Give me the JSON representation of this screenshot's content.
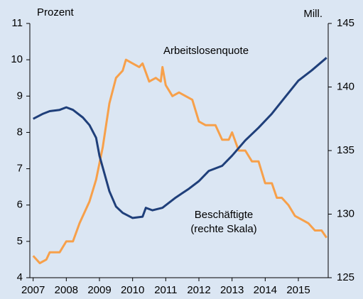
{
  "chart_data": {
    "type": "line",
    "y_label": "Prozent",
    "y2_label": "Mill.",
    "annotations": [
      "Arbeitslosenquote",
      "Beschäftigte",
      "(rechte Skala)"
    ],
    "xlim": [
      2006.9,
      2015.9
    ],
    "xticks": [
      2007,
      2008,
      2009,
      2010,
      2011,
      2012,
      2013,
      2014,
      2015
    ],
    "ylim": [
      4,
      11
    ],
    "yticks": [
      4,
      5,
      6,
      7,
      8,
      9,
      10,
      11
    ],
    "y2lim": [
      125,
      145
    ],
    "y2ticks": [
      125,
      130,
      135,
      140,
      145
    ],
    "series": [
      {
        "name": "Arbeitslosenquote",
        "color": "#f7a04a",
        "x": [
          2007.0,
          2007.2,
          2007.4,
          2007.5,
          2007.8,
          2008.0,
          2008.2,
          2008.4,
          2008.7,
          2008.9,
          2009.1,
          2009.3,
          2009.5,
          2009.7,
          2009.8,
          2010.0,
          2010.2,
          2010.3,
          2010.5,
          2010.7,
          2010.85,
          2010.9,
          2011.0,
          2011.2,
          2011.4,
          2011.6,
          2011.8,
          2012.0,
          2012.2,
          2012.5,
          2012.7,
          2012.9,
          2013.0,
          2013.2,
          2013.4,
          2013.6,
          2013.8,
          2014.0,
          2014.2,
          2014.35,
          2014.5,
          2014.7,
          2014.9,
          2015.1,
          2015.3,
          2015.5,
          2015.7,
          2015.85
        ],
        "values": [
          4.6,
          4.4,
          4.5,
          4.7,
          4.7,
          5.0,
          5.0,
          5.5,
          6.1,
          6.7,
          7.6,
          8.8,
          9.5,
          9.7,
          10.0,
          9.9,
          9.8,
          9.9,
          9.4,
          9.5,
          9.4,
          9.8,
          9.3,
          9.0,
          9.1,
          9.0,
          8.9,
          8.3,
          8.2,
          8.2,
          7.8,
          7.8,
          8.0,
          7.5,
          7.5,
          7.2,
          7.2,
          6.6,
          6.6,
          6.2,
          6.2,
          6.0,
          5.7,
          5.6,
          5.5,
          5.3,
          5.3,
          5.1
        ]
      },
      {
        "name": "Beschäftigte",
        "color": "#1f3f7a",
        "axis": "y2",
        "x": [
          2007.0,
          2007.3,
          2007.5,
          2007.8,
          2008.0,
          2008.2,
          2008.5,
          2008.7,
          2008.9,
          2009.0,
          2009.3,
          2009.5,
          2009.7,
          2010.0,
          2010.3,
          2010.4,
          2010.6,
          2010.9,
          2011.3,
          2011.7,
          2012.0,
          2012.3,
          2012.7,
          2013.0,
          2013.4,
          2013.8,
          2014.2,
          2014.6,
          2015.0,
          2015.4,
          2015.85
        ],
        "values": [
          137.5,
          137.9,
          138.1,
          138.2,
          138.4,
          138.2,
          137.6,
          137.0,
          136.0,
          134.6,
          131.8,
          130.6,
          130.1,
          129.7,
          129.8,
          130.5,
          130.3,
          130.5,
          131.3,
          132.0,
          132.6,
          133.4,
          133.8,
          134.6,
          135.8,
          136.8,
          137.9,
          139.2,
          140.5,
          141.3,
          142.3
        ]
      }
    ]
  }
}
